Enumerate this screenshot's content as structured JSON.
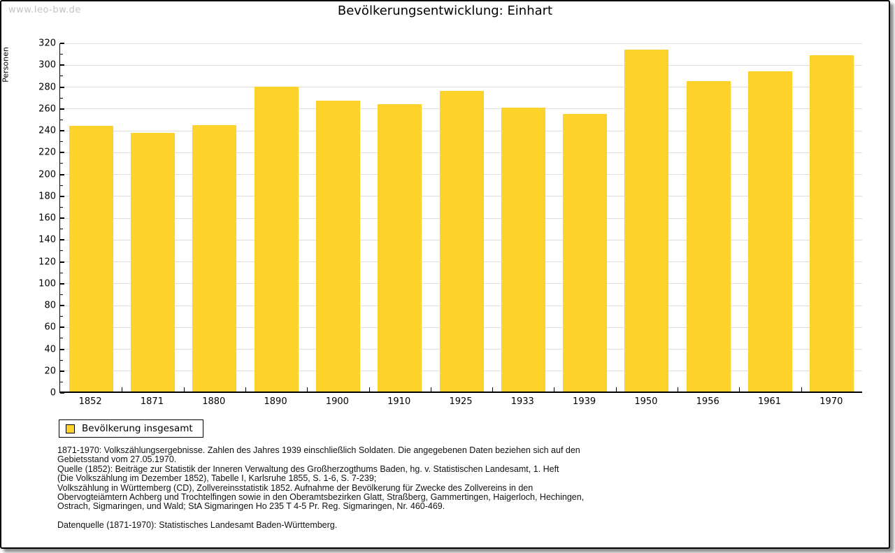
{
  "watermark": "www.leo-bw.de",
  "title": "Bevölkerungsentwicklung: Einhart",
  "legend": {
    "label": "Bevölkerung insgesamt",
    "swatch_color": "#FDD32B"
  },
  "chart_data": {
    "type": "bar",
    "title": "Bevölkerungsentwicklung: Einhart",
    "xlabel": "",
    "ylabel": "Personen",
    "categories": [
      "1852",
      "1871",
      "1880",
      "1890",
      "1900",
      "1910",
      "1925",
      "1933",
      "1939",
      "1950",
      "1956",
      "1961",
      "1970"
    ],
    "series": [
      {
        "name": "Bevölkerung insgesamt",
        "values": [
          243,
          237,
          244,
          279,
          266,
          263,
          275,
          260,
          254,
          313,
          284,
          293,
          308
        ]
      }
    ],
    "ylim": [
      0,
      320
    ],
    "ytick_step": 20,
    "ytick_minor_step": 10,
    "grid": true,
    "legend_position": "bottom-left",
    "bar_color": "#FDD32B",
    "gridline_color": "#dedede"
  },
  "footer": {
    "lines": [
      "1871-1970: Volkszählungsergebnisse. Zahlen des Jahres 1939 einschließlich Soldaten. Die angegebenen Daten beziehen sich auf den",
      "Gebietsstand vom 27.05.1970.",
      "Quelle (1852): Beiträge zur Statistik der Inneren Verwaltung des Großherzogthums Baden, hg. v. Statistischen Landesamt, 1. Heft",
      "(Die Volkszählung im Dezember 1852), Tabelle I, Karlsruhe 1855, S. 1-6, S. 7-239;",
      "Volkszählung in Württemberg (CD), Zollvereinsstatistik 1852. Aufnahme der Bevölkerung für Zwecke des Zollvereins in den",
      "Obervogteiämtern Achberg und Trochtelfingen sowie in den Oberamtsbezirken Glatt, Straßberg, Gammertingen, Haigerloch, Hechingen,",
      "Ostrach, Sigmaringen, und Wald; StA Sigmaringen Ho 235 T 4-5 Pr. Reg. Sigmaringen, Nr. 460-469."
    ],
    "source_line": "Datenquelle (1871-1970): Statistisches Landesamt Baden-Württemberg."
  }
}
